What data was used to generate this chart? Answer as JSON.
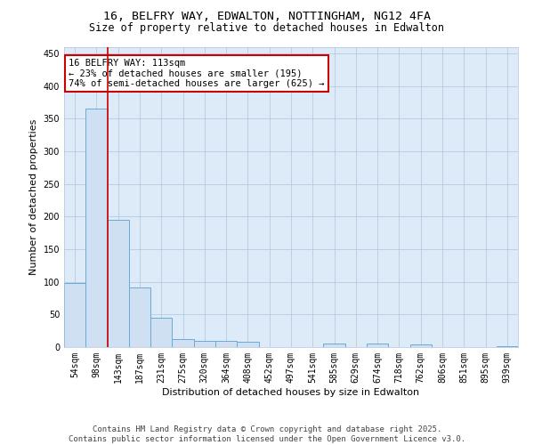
{
  "title": "16, BELFRY WAY, EDWALTON, NOTTINGHAM, NG12 4FA",
  "subtitle": "Size of property relative to detached houses in Edwalton",
  "xlabel": "Distribution of detached houses by size in Edwalton",
  "ylabel": "Number of detached properties",
  "categories": [
    "54sqm",
    "98sqm",
    "143sqm",
    "187sqm",
    "231sqm",
    "275sqm",
    "320sqm",
    "364sqm",
    "408sqm",
    "452sqm",
    "497sqm",
    "541sqm",
    "585sqm",
    "629sqm",
    "674sqm",
    "718sqm",
    "762sqm",
    "806sqm",
    "851sqm",
    "895sqm",
    "939sqm"
  ],
  "values": [
    98,
    365,
    195,
    92,
    45,
    12,
    10,
    10,
    8,
    0,
    0,
    0,
    6,
    0,
    5,
    0,
    4,
    0,
    0,
    0,
    1
  ],
  "bar_color": "#cfe0f2",
  "bar_edge_color": "#6aaad4",
  "property_line_x": 1.5,
  "annotation_line1": "16 BELFRY WAY: 113sqm",
  "annotation_line2": "← 23% of detached houses are smaller (195)",
  "annotation_line3": "74% of semi-detached houses are larger (625) →",
  "annotation_box_color": "#ffffff",
  "annotation_box_edge_color": "#cc0000",
  "ylim": [
    0,
    460
  ],
  "yticks": [
    0,
    50,
    100,
    150,
    200,
    250,
    300,
    350,
    400,
    450
  ],
  "footer": "Contains HM Land Registry data © Crown copyright and database right 2025.\nContains public sector information licensed under the Open Government Licence v3.0.",
  "bg_color": "#ffffff",
  "plot_bg_color": "#ddeaf7",
  "grid_color": "#b0c4de",
  "title_fontsize": 9.5,
  "subtitle_fontsize": 8.5,
  "label_fontsize": 8,
  "tick_fontsize": 7,
  "annotation_fontsize": 7.5,
  "footer_fontsize": 6.5
}
